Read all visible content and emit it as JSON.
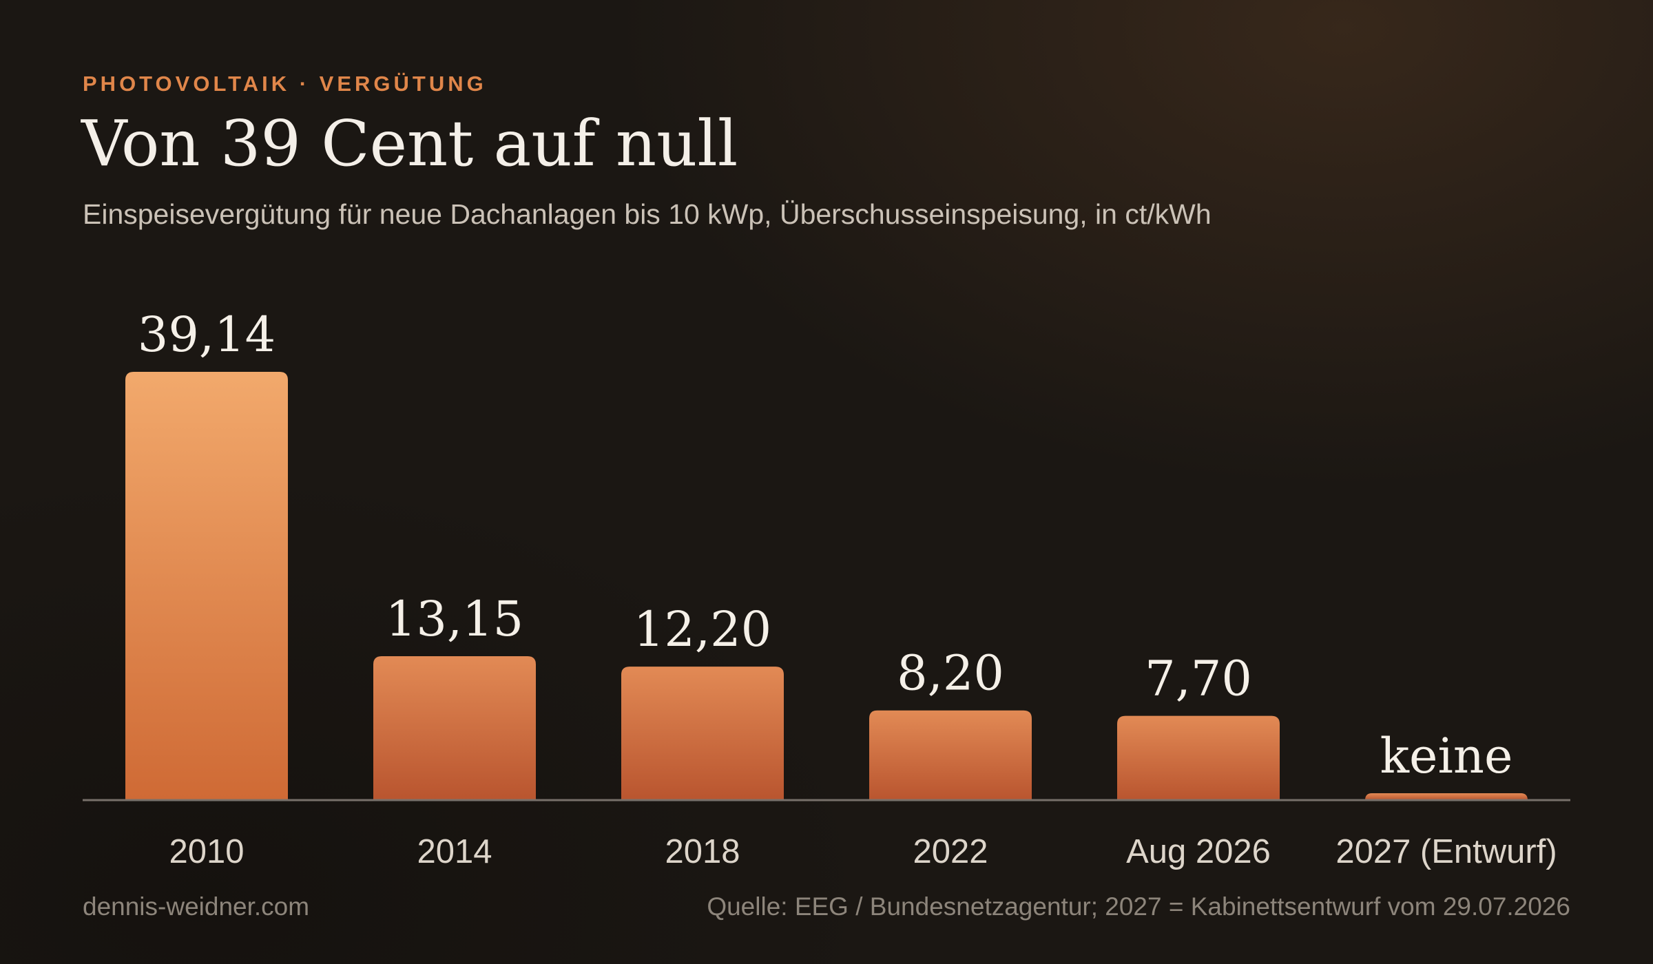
{
  "header": {
    "kicker": "PHOTOVOLTAIK · VERGÜTUNG",
    "title": "Von 39 Cent auf null",
    "subtitle": "Einspeisevergütung für neue Dachanlagen bis 10 kWp, Überschusseinspeisung, in ct/kWh"
  },
  "chart_data": {
    "type": "bar",
    "title": "Von 39 Cent auf null",
    "subtitle": "Einspeisevergütung für neue Dachanlagen bis 10 kWp, Überschusseinspeisung, in ct/kWh",
    "xlabel": "",
    "ylabel": "",
    "unit": "ct/kWh",
    "categories": [
      "2010",
      "2014",
      "2018",
      "2022",
      "Aug 2026",
      "2027 (Entwurf)"
    ],
    "values": [
      39.14,
      13.15,
      12.2,
      8.2,
      7.7,
      0
    ],
    "value_labels": [
      "39,14",
      "13,15",
      "12,20",
      "8,20",
      "7,70",
      "keine"
    ],
    "ylim": [
      0,
      39.14
    ],
    "grid": false,
    "legend": "none",
    "colors": {
      "bar_top": "#f2a96c",
      "bar_bottom": "#cf6a35",
      "baseline": "#77706a",
      "value_label": "#f5f0e8",
      "tick_label": "#ddd5ca"
    }
  },
  "footer": {
    "site": "dennis-weidner.com",
    "source": "Quelle: EEG / Bundesnetzagentur; 2027 = Kabinettsentwurf vom 29.07.2026"
  }
}
